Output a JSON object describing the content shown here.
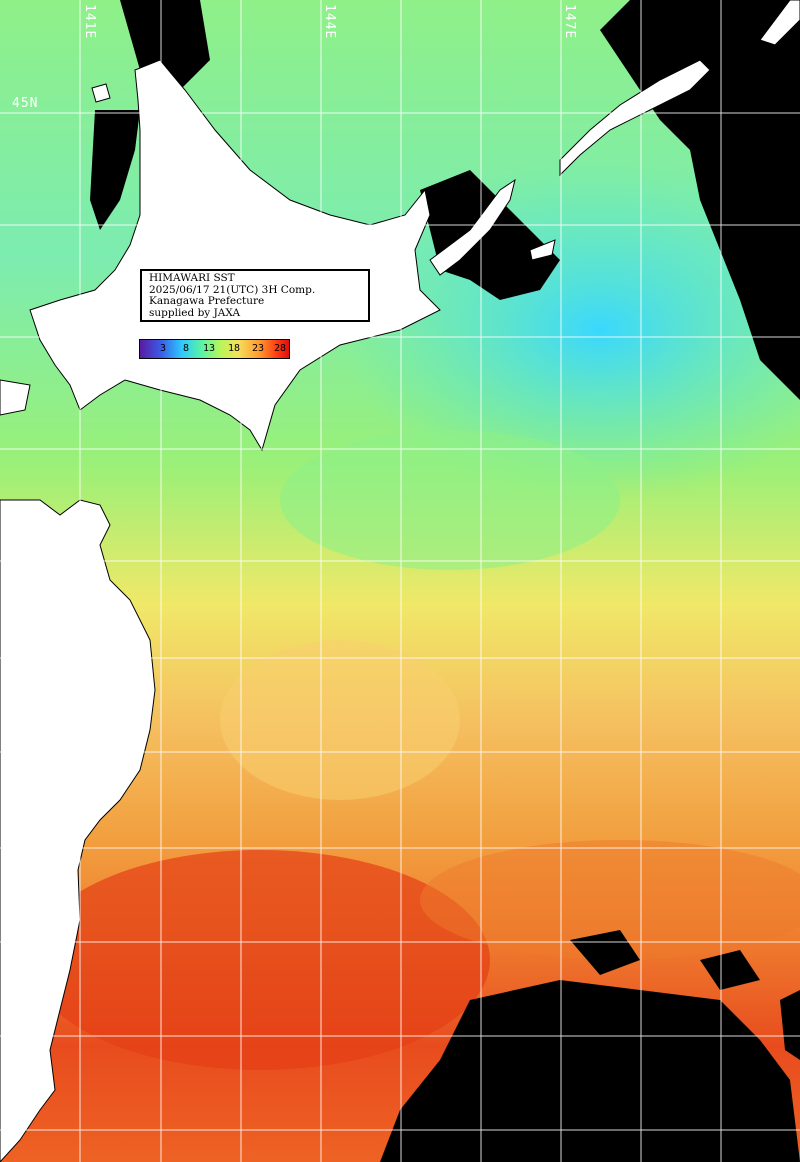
{
  "labels": {
    "lon_141": "141E",
    "lon_144": "144E",
    "lon_147": "147E",
    "lat_45": "45N"
  },
  "info": {
    "line1": "HIMAWARI SST",
    "line2": "2025/06/17 21(UTC) 3H Comp.",
    "line3": "Kanagawa Prefecture",
    "line4": "supplied by JAXA"
  },
  "legend": {
    "ticks": [
      "3",
      "8",
      "13",
      "18",
      "23",
      "28"
    ]
  },
  "colors": {
    "cold": "#2ec8ff",
    "cool": "#7ff08a",
    "mild": "#f5d060",
    "warm": "#f08030",
    "hot": "#e8421a",
    "land": "#ffffff",
    "no_data": "#000000",
    "grid": "#ffffff"
  }
}
